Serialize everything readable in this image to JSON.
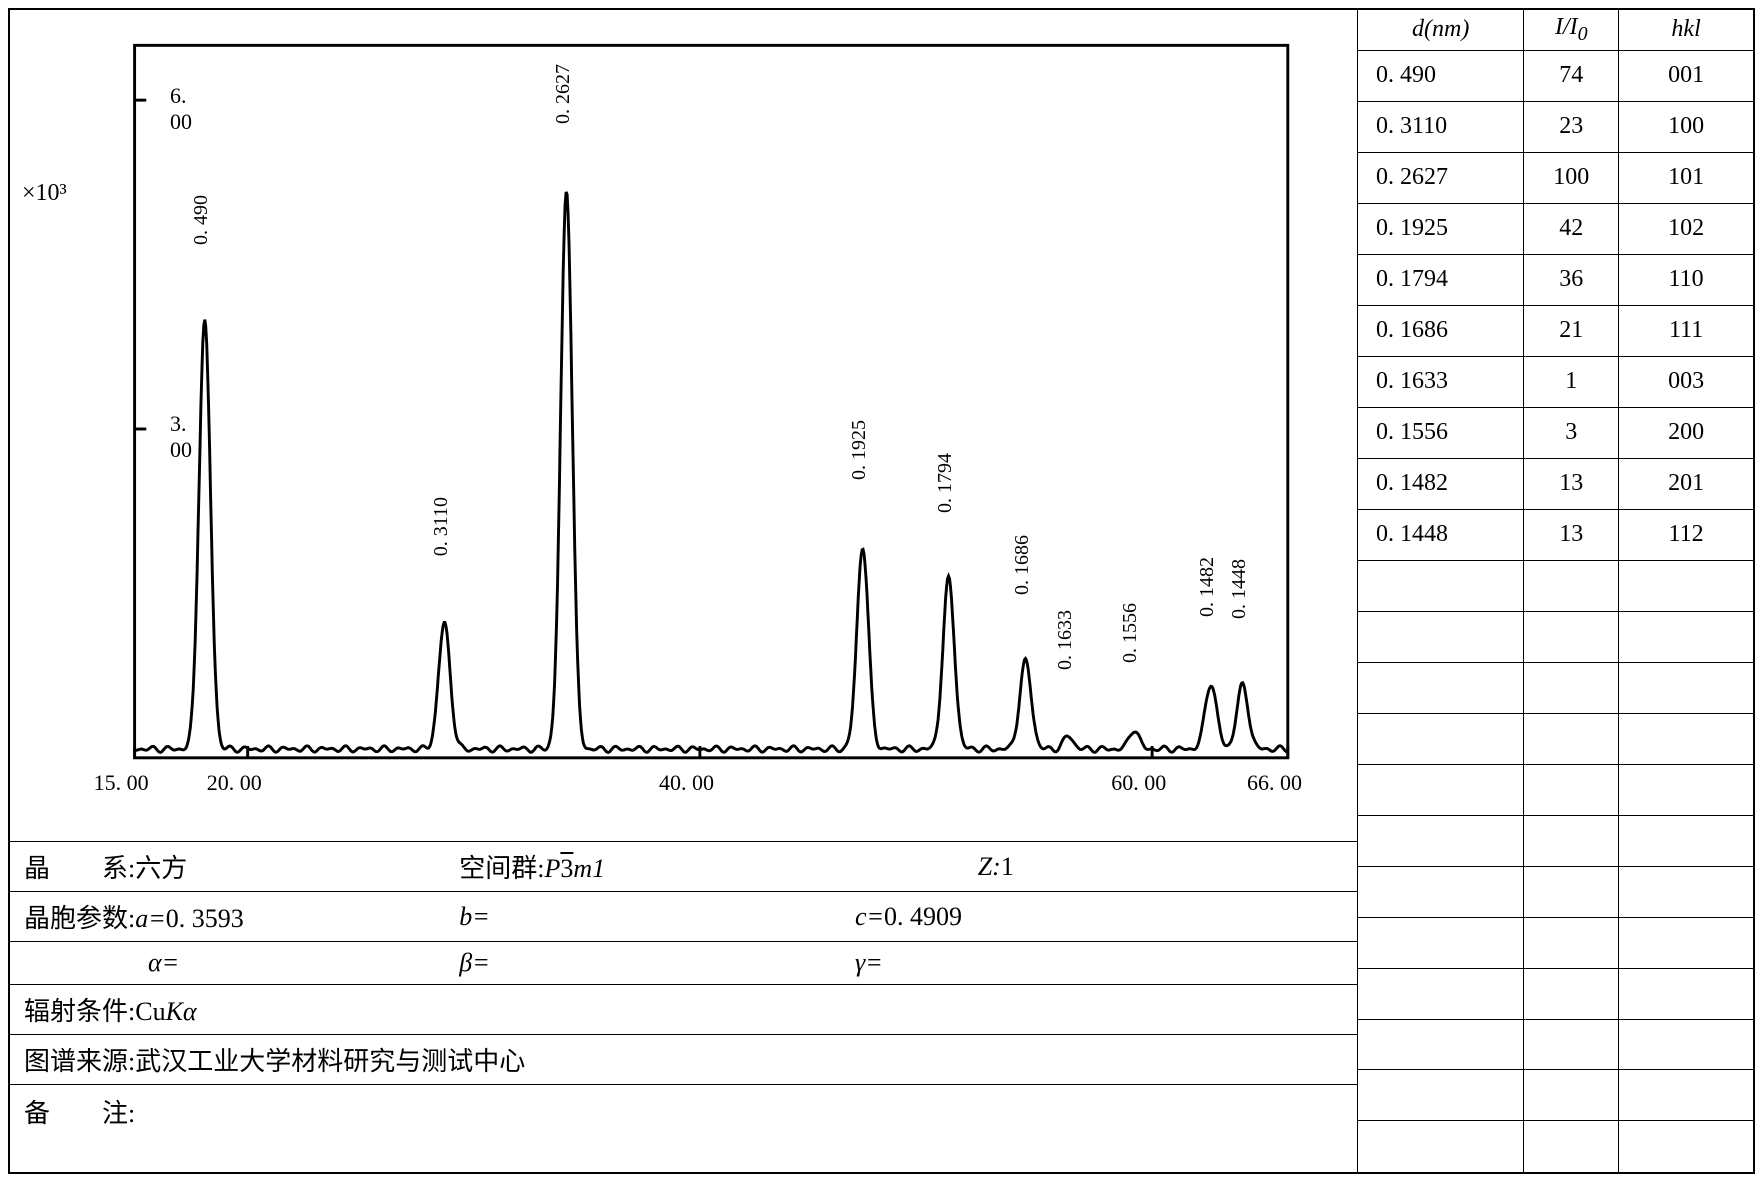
{
  "chart": {
    "type": "xrd-diffraction-pattern",
    "y_multiplier_label": "×10³",
    "y_ticks": [
      3.0,
      6.0
    ],
    "y_tick_labels": [
      "3. 00",
      "6. 00"
    ],
    "x_ticks": [
      15.0,
      20.0,
      40.0,
      60.0,
      66.0
    ],
    "x_tick_labels": [
      "15. 00",
      "20. 00",
      "40. 00",
      "60. 00",
      "66. 00"
    ],
    "xlim": [
      15.0,
      66.0
    ],
    "ylim": [
      0,
      6.5
    ],
    "background_color": "#ffffff",
    "line_color": "#000000",
    "line_width": 2,
    "label_fontsize": 20,
    "tick_fontsize": 22,
    "peaks": [
      {
        "x": 18.1,
        "intensity": 74,
        "height": 3.9,
        "label": "0. 490",
        "fwhm": 0.6
      },
      {
        "x": 28.7,
        "intensity": 23,
        "height": 1.15,
        "label": "0. 3110",
        "fwhm": 0.6
      },
      {
        "x": 34.1,
        "intensity": 100,
        "height": 5.1,
        "label": "0. 2627",
        "fwhm": 0.6
      },
      {
        "x": 47.2,
        "intensity": 42,
        "height": 1.85,
        "label": "0. 1925",
        "fwhm": 0.6
      },
      {
        "x": 51.0,
        "intensity": 36,
        "height": 1.55,
        "label": "0. 1794",
        "fwhm": 0.6
      },
      {
        "x": 54.4,
        "intensity": 21,
        "height": 0.8,
        "label": "0. 1686",
        "fwhm": 0.6
      },
      {
        "x": 56.3,
        "intensity": 1,
        "height": 0.12,
        "label": "0. 1633",
        "fwhm": 0.5
      },
      {
        "x": 59.2,
        "intensity": 3,
        "height": 0.18,
        "label": "0. 1556",
        "fwhm": 0.5
      },
      {
        "x": 62.6,
        "intensity": 13,
        "height": 0.6,
        "label": "0. 1482",
        "fwhm": 0.6
      },
      {
        "x": 64.0,
        "intensity": 13,
        "height": 0.58,
        "label": "0. 1448",
        "fwhm": 0.6
      }
    ],
    "baseline_noise": 0.08
  },
  "info": {
    "crystal_system_label": "晶　　系:",
    "crystal_system_value": "六方",
    "space_group_label": "空间群:",
    "space_group_value_prefix": "P",
    "space_group_value_overline": "3",
    "space_group_value_suffix": "m1",
    "z_label": "Z:",
    "z_value": "1",
    "cell_params_label": "晶胞参数:",
    "a_label": "a=",
    "a_value": "0. 3593",
    "b_label": "b=",
    "b_value": "",
    "c_label": "c=",
    "c_value": "0. 4909",
    "alpha_label": "α=",
    "alpha_value": "",
    "beta_label": "β=",
    "beta_value": "",
    "gamma_label": "γ=",
    "gamma_value": "",
    "radiation_label": "辐射条件:",
    "radiation_value_prefix": "Cu",
    "radiation_value_k": "K",
    "radiation_value_alpha": "α",
    "source_label": "图谱来源:",
    "source_value": "武汉工业大学材料研究与测试中心",
    "notes_label": "备　　注:",
    "notes_value": ""
  },
  "table": {
    "headers": {
      "d": "d(nm)",
      "ii0": "I/I₀",
      "hkl": "hkl"
    },
    "rows": [
      {
        "d": "0. 490",
        "ii0": "74",
        "hkl": "001"
      },
      {
        "d": "0. 3110",
        "ii0": "23",
        "hkl": "100"
      },
      {
        "d": "0. 2627",
        "ii0": "100",
        "hkl": "101"
      },
      {
        "d": "0. 1925",
        "ii0": "42",
        "hkl": "102"
      },
      {
        "d": "0. 1794",
        "ii0": "36",
        "hkl": "110"
      },
      {
        "d": "0. 1686",
        "ii0": "21",
        "hkl": "111"
      },
      {
        "d": "0. 1633",
        "ii0": "1",
        "hkl": "003"
      },
      {
        "d": "0. 1556",
        "ii0": "3",
        "hkl": "200"
      },
      {
        "d": "0. 1482",
        "ii0": "13",
        "hkl": "201"
      },
      {
        "d": "0. 1448",
        "ii0": "13",
        "hkl": "112"
      }
    ],
    "empty_rows": 12,
    "col_widths": [
      "42%",
      "24%",
      "34%"
    ]
  }
}
